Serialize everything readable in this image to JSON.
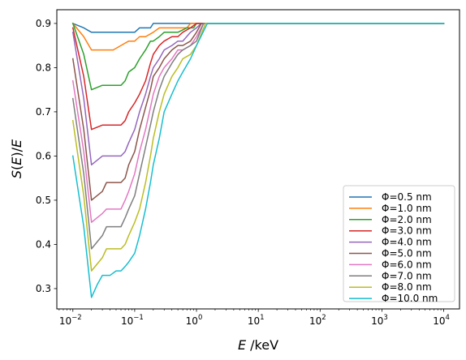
{
  "chart_data": {
    "type": "line",
    "xlabel": "E /keV",
    "ylabel": "S(E)/E",
    "xscale": "log",
    "xlim": [
      0.0055,
      18000
    ],
    "ylim": [
      0.254,
      0.931
    ],
    "x_ticks": [
      {
        "value": 0.01,
        "base": "10",
        "exp": "−2"
      },
      {
        "value": 0.1,
        "base": "10",
        "exp": "−1"
      },
      {
        "value": 1,
        "base": "10",
        "exp": "0"
      },
      {
        "value": 10,
        "base": "10",
        "exp": "1"
      },
      {
        "value": 100,
        "base": "10",
        "exp": "2"
      },
      {
        "value": 1000,
        "base": "10",
        "exp": "3"
      },
      {
        "value": 10000,
        "base": "10",
        "exp": "4"
      }
    ],
    "y_ticks": [
      "0.3",
      "0.4",
      "0.5",
      "0.6",
      "0.7",
      "0.8",
      "0.9"
    ],
    "grid": false,
    "legend_position": "lower-right",
    "series": [
      {
        "name": "Φ=0.5 nm",
        "color": "#1f77b4",
        "points": [
          [
            0.01,
            0.9
          ],
          [
            0.015,
            0.89
          ],
          [
            0.02,
            0.88
          ],
          [
            0.03,
            0.88
          ],
          [
            0.05,
            0.88
          ],
          [
            0.07,
            0.88
          ],
          [
            0.1,
            0.88
          ],
          [
            0.12,
            0.89
          ],
          [
            0.18,
            0.89
          ],
          [
            0.2,
            0.9
          ],
          [
            1,
            0.9
          ],
          [
            10000,
            0.9
          ]
        ]
      },
      {
        "name": "Φ=1.0 nm",
        "color": "#ff7f0e",
        "points": [
          [
            0.01,
            0.9
          ],
          [
            0.015,
            0.87
          ],
          [
            0.02,
            0.84
          ],
          [
            0.03,
            0.84
          ],
          [
            0.045,
            0.84
          ],
          [
            0.06,
            0.85
          ],
          [
            0.08,
            0.86
          ],
          [
            0.1,
            0.86
          ],
          [
            0.12,
            0.87
          ],
          [
            0.15,
            0.87
          ],
          [
            0.2,
            0.88
          ],
          [
            0.25,
            0.89
          ],
          [
            0.5,
            0.89
          ],
          [
            0.7,
            0.89
          ],
          [
            0.8,
            0.9
          ],
          [
            1,
            0.9
          ],
          [
            10000,
            0.9
          ]
        ]
      },
      {
        "name": "Φ=2.0 nm",
        "color": "#2ca02c",
        "points": [
          [
            0.01,
            0.9
          ],
          [
            0.015,
            0.83
          ],
          [
            0.02,
            0.75
          ],
          [
            0.03,
            0.76
          ],
          [
            0.04,
            0.76
          ],
          [
            0.06,
            0.76
          ],
          [
            0.07,
            0.77
          ],
          [
            0.08,
            0.79
          ],
          [
            0.1,
            0.8
          ],
          [
            0.12,
            0.82
          ],
          [
            0.15,
            0.84
          ],
          [
            0.18,
            0.86
          ],
          [
            0.2,
            0.86
          ],
          [
            0.25,
            0.87
          ],
          [
            0.3,
            0.88
          ],
          [
            0.4,
            0.88
          ],
          [
            0.5,
            0.88
          ],
          [
            0.7,
            0.89
          ],
          [
            0.9,
            0.89
          ],
          [
            1,
            0.9
          ],
          [
            10000,
            0.9
          ]
        ]
      },
      {
        "name": "Φ=3.0 nm",
        "color": "#d62728",
        "points": [
          [
            0.01,
            0.89
          ],
          [
            0.015,
            0.78
          ],
          [
            0.02,
            0.66
          ],
          [
            0.03,
            0.67
          ],
          [
            0.04,
            0.67
          ],
          [
            0.06,
            0.67
          ],
          [
            0.07,
            0.68
          ],
          [
            0.08,
            0.7
          ],
          [
            0.1,
            0.72
          ],
          [
            0.12,
            0.74
          ],
          [
            0.15,
            0.77
          ],
          [
            0.18,
            0.81
          ],
          [
            0.2,
            0.83
          ],
          [
            0.25,
            0.85
          ],
          [
            0.3,
            0.86
          ],
          [
            0.4,
            0.87
          ],
          [
            0.5,
            0.87
          ],
          [
            0.6,
            0.88
          ],
          [
            0.8,
            0.89
          ],
          [
            1,
            0.9
          ],
          [
            10000,
            0.9
          ]
        ]
      },
      {
        "name": "Φ=4.0 nm",
        "color": "#9467bd",
        "points": [
          [
            0.01,
            0.88
          ],
          [
            0.015,
            0.73
          ],
          [
            0.02,
            0.58
          ],
          [
            0.03,
            0.6
          ],
          [
            0.045,
            0.6
          ],
          [
            0.06,
            0.6
          ],
          [
            0.07,
            0.61
          ],
          [
            0.08,
            0.63
          ],
          [
            0.1,
            0.66
          ],
          [
            0.12,
            0.7
          ],
          [
            0.15,
            0.74
          ],
          [
            0.18,
            0.78
          ],
          [
            0.2,
            0.8
          ],
          [
            0.25,
            0.82
          ],
          [
            0.3,
            0.84
          ],
          [
            0.4,
            0.85
          ],
          [
            0.5,
            0.86
          ],
          [
            0.6,
            0.86
          ],
          [
            0.8,
            0.88
          ],
          [
            1,
            0.89
          ],
          [
            1.2,
            0.9
          ],
          [
            10000,
            0.9
          ]
        ]
      },
      {
        "name": "Φ=5.0 nm",
        "color": "#8c564b",
        "points": [
          [
            0.01,
            0.82
          ],
          [
            0.015,
            0.66
          ],
          [
            0.02,
            0.5
          ],
          [
            0.03,
            0.52
          ],
          [
            0.035,
            0.54
          ],
          [
            0.06,
            0.54
          ],
          [
            0.07,
            0.55
          ],
          [
            0.08,
            0.58
          ],
          [
            0.1,
            0.61
          ],
          [
            0.12,
            0.66
          ],
          [
            0.15,
            0.71
          ],
          [
            0.18,
            0.75
          ],
          [
            0.2,
            0.78
          ],
          [
            0.25,
            0.8
          ],
          [
            0.3,
            0.82
          ],
          [
            0.4,
            0.84
          ],
          [
            0.5,
            0.85
          ],
          [
            0.6,
            0.85
          ],
          [
            0.8,
            0.86
          ],
          [
            1,
            0.88
          ],
          [
            1.2,
            0.9
          ],
          [
            10000,
            0.9
          ]
        ]
      },
      {
        "name": "Φ=6.0 nm",
        "color": "#e377c2",
        "points": [
          [
            0.01,
            0.77
          ],
          [
            0.015,
            0.61
          ],
          [
            0.02,
            0.45
          ],
          [
            0.03,
            0.47
          ],
          [
            0.035,
            0.48
          ],
          [
            0.06,
            0.48
          ],
          [
            0.07,
            0.5
          ],
          [
            0.08,
            0.52
          ],
          [
            0.1,
            0.56
          ],
          [
            0.12,
            0.61
          ],
          [
            0.15,
            0.66
          ],
          [
            0.18,
            0.71
          ],
          [
            0.2,
            0.74
          ],
          [
            0.25,
            0.78
          ],
          [
            0.3,
            0.8
          ],
          [
            0.4,
            0.82
          ],
          [
            0.5,
            0.84
          ],
          [
            0.6,
            0.84
          ],
          [
            0.8,
            0.85
          ],
          [
            1,
            0.87
          ],
          [
            1.3,
            0.9
          ],
          [
            10000,
            0.9
          ]
        ]
      },
      {
        "name": "Φ=7.0 nm",
        "color": "#7f7f7f",
        "points": [
          [
            0.01,
            0.73
          ],
          [
            0.015,
            0.56
          ],
          [
            0.02,
            0.39
          ],
          [
            0.03,
            0.42
          ],
          [
            0.035,
            0.44
          ],
          [
            0.06,
            0.44
          ],
          [
            0.07,
            0.46
          ],
          [
            0.08,
            0.48
          ],
          [
            0.1,
            0.51
          ],
          [
            0.12,
            0.56
          ],
          [
            0.15,
            0.62
          ],
          [
            0.18,
            0.67
          ],
          [
            0.2,
            0.7
          ],
          [
            0.25,
            0.75
          ],
          [
            0.3,
            0.78
          ],
          [
            0.4,
            0.81
          ],
          [
            0.5,
            0.83
          ],
          [
            0.6,
            0.84
          ],
          [
            0.8,
            0.85
          ],
          [
            1,
            0.86
          ],
          [
            1.3,
            0.9
          ],
          [
            10000,
            0.9
          ]
        ]
      },
      {
        "name": "Φ=8.0 nm",
        "color": "#bcbd22",
        "points": [
          [
            0.01,
            0.68
          ],
          [
            0.015,
            0.51
          ],
          [
            0.02,
            0.34
          ],
          [
            0.03,
            0.37
          ],
          [
            0.035,
            0.39
          ],
          [
            0.06,
            0.39
          ],
          [
            0.07,
            0.4
          ],
          [
            0.08,
            0.42
          ],
          [
            0.1,
            0.45
          ],
          [
            0.12,
            0.48
          ],
          [
            0.15,
            0.54
          ],
          [
            0.18,
            0.6
          ],
          [
            0.2,
            0.64
          ],
          [
            0.25,
            0.7
          ],
          [
            0.3,
            0.74
          ],
          [
            0.4,
            0.78
          ],
          [
            0.5,
            0.8
          ],
          [
            0.6,
            0.82
          ],
          [
            0.8,
            0.83
          ],
          [
            1,
            0.85
          ],
          [
            1.4,
            0.9
          ],
          [
            10000,
            0.9
          ]
        ]
      },
      {
        "name": "Φ=10.0 nm",
        "color": "#17becf",
        "points": [
          [
            0.01,
            0.6
          ],
          [
            0.015,
            0.44
          ],
          [
            0.02,
            0.28
          ],
          [
            0.025,
            0.31
          ],
          [
            0.03,
            0.33
          ],
          [
            0.04,
            0.33
          ],
          [
            0.05,
            0.34
          ],
          [
            0.06,
            0.34
          ],
          [
            0.07,
            0.35
          ],
          [
            0.08,
            0.36
          ],
          [
            0.1,
            0.38
          ],
          [
            0.12,
            0.42
          ],
          [
            0.15,
            0.48
          ],
          [
            0.18,
            0.54
          ],
          [
            0.2,
            0.58
          ],
          [
            0.25,
            0.64
          ],
          [
            0.3,
            0.7
          ],
          [
            0.4,
            0.74
          ],
          [
            0.5,
            0.77
          ],
          [
            0.6,
            0.79
          ],
          [
            0.8,
            0.82
          ],
          [
            1,
            0.85
          ],
          [
            1.5,
            0.9
          ],
          [
            10000,
            0.9
          ]
        ]
      }
    ]
  }
}
